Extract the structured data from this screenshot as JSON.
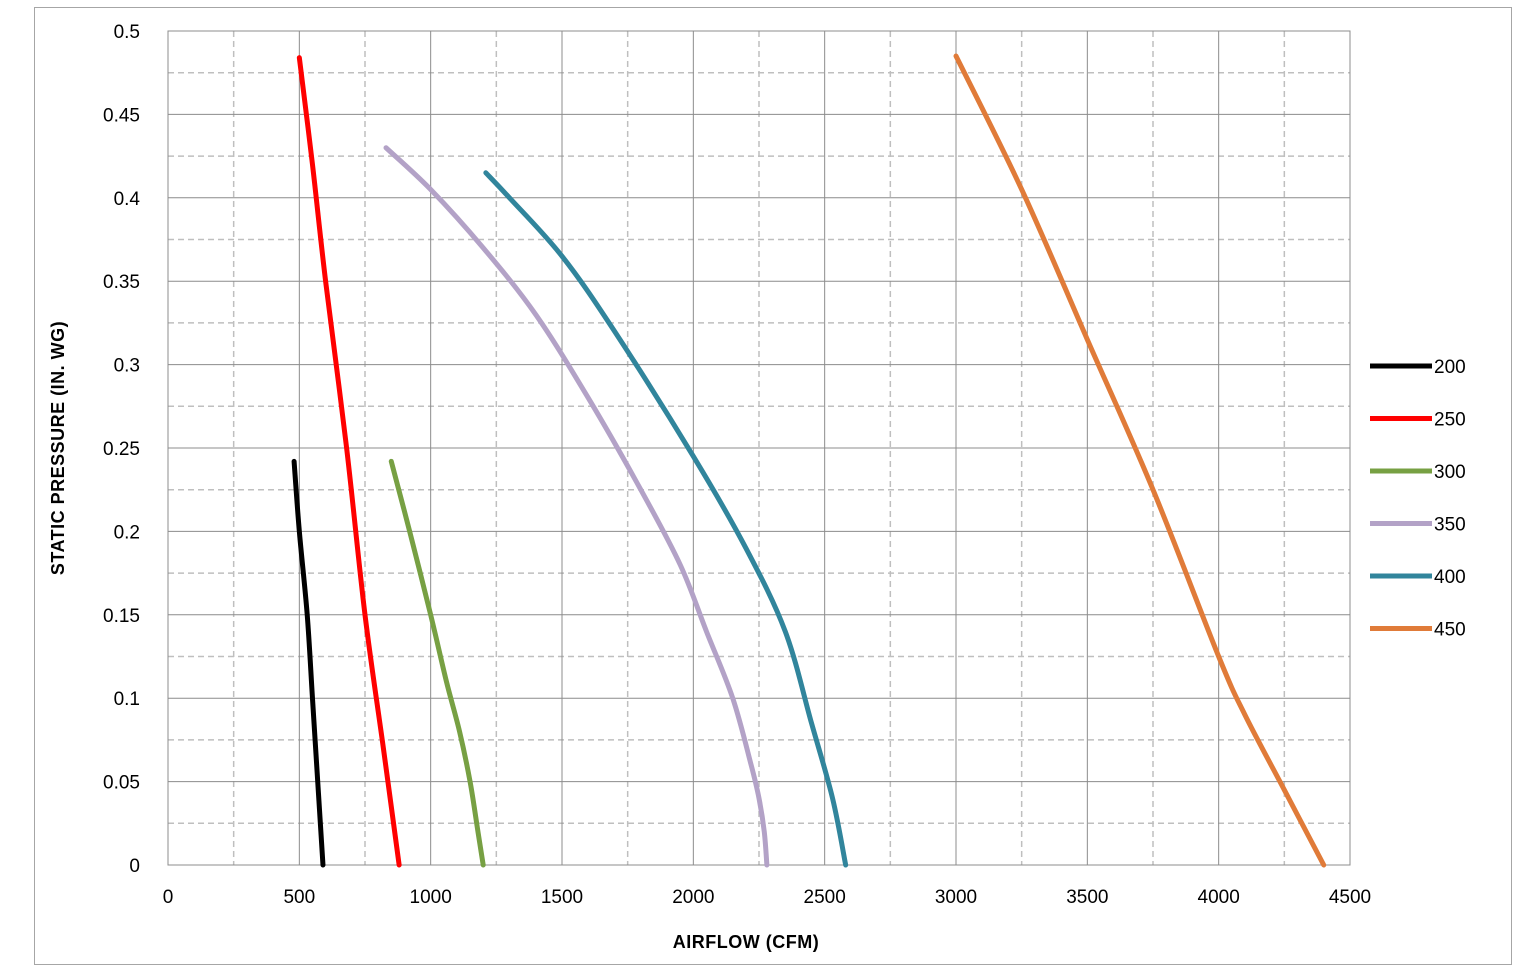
{
  "chart_data": {
    "type": "line",
    "title": "",
    "xlabel": "AIRFLOW (CFM)",
    "ylabel": "STATIC  PRESSURE  (IN. WG)",
    "xlim": [
      0,
      4500
    ],
    "ylim": [
      0,
      0.5
    ],
    "x_ticks": [
      "0",
      "500",
      "1000",
      "1500",
      "2000",
      "2500",
      "3000",
      "3500",
      "4000",
      "4500"
    ],
    "y_ticks": [
      "0",
      "0.05",
      "0.1",
      "0.15",
      "0.2",
      "0.25",
      "0.3",
      "0.35",
      "0.4",
      "0.45",
      "0.5"
    ],
    "grid": {
      "major": true,
      "minor_dashed": true
    },
    "legend_position": "right",
    "series": [
      {
        "name": "200",
        "color": "#000000",
        "points": [
          [
            480,
            0.242
          ],
          [
            500,
            0.2
          ],
          [
            530,
            0.15
          ],
          [
            550,
            0.1
          ],
          [
            570,
            0.05
          ],
          [
            590,
            0.0
          ]
        ]
      },
      {
        "name": "250",
        "color": "#ff0000",
        "points": [
          [
            500,
            0.484
          ],
          [
            550,
            0.42
          ],
          [
            600,
            0.35
          ],
          [
            680,
            0.25
          ],
          [
            750,
            0.15
          ],
          [
            820,
            0.07
          ],
          [
            880,
            0.0
          ]
        ]
      },
      {
        "name": "300",
        "color": "#77a043",
        "points": [
          [
            850,
            0.242
          ],
          [
            920,
            0.2
          ],
          [
            1000,
            0.15
          ],
          [
            1060,
            0.11
          ],
          [
            1110,
            0.08
          ],
          [
            1150,
            0.05
          ],
          [
            1180,
            0.02
          ],
          [
            1200,
            0.0
          ]
        ]
      },
      {
        "name": "350",
        "color": "#b3a2c7",
        "points": [
          [
            830,
            0.43
          ],
          [
            1000,
            0.405
          ],
          [
            1200,
            0.37
          ],
          [
            1400,
            0.33
          ],
          [
            1600,
            0.28
          ],
          [
            1800,
            0.225
          ],
          [
            1950,
            0.18
          ],
          [
            2050,
            0.14
          ],
          [
            2150,
            0.1
          ],
          [
            2220,
            0.06
          ],
          [
            2250,
            0.04
          ],
          [
            2270,
            0.02
          ],
          [
            2280,
            0.0
          ]
        ]
      },
      {
        "name": "400",
        "color": "#31859c",
        "points": [
          [
            1210,
            0.415
          ],
          [
            1300,
            0.4
          ],
          [
            1500,
            0.365
          ],
          [
            1700,
            0.32
          ],
          [
            2000,
            0.245
          ],
          [
            2200,
            0.19
          ],
          [
            2350,
            0.14
          ],
          [
            2450,
            0.085
          ],
          [
            2530,
            0.04
          ],
          [
            2580,
            0.0
          ]
        ]
      },
      {
        "name": "450",
        "color": "#e07b39",
        "points": [
          [
            3000,
            0.485
          ],
          [
            3250,
            0.405
          ],
          [
            3500,
            0.315
          ],
          [
            3750,
            0.225
          ],
          [
            4000,
            0.125
          ],
          [
            4100,
            0.09
          ],
          [
            4250,
            0.045
          ],
          [
            4400,
            0.0
          ]
        ]
      }
    ]
  }
}
